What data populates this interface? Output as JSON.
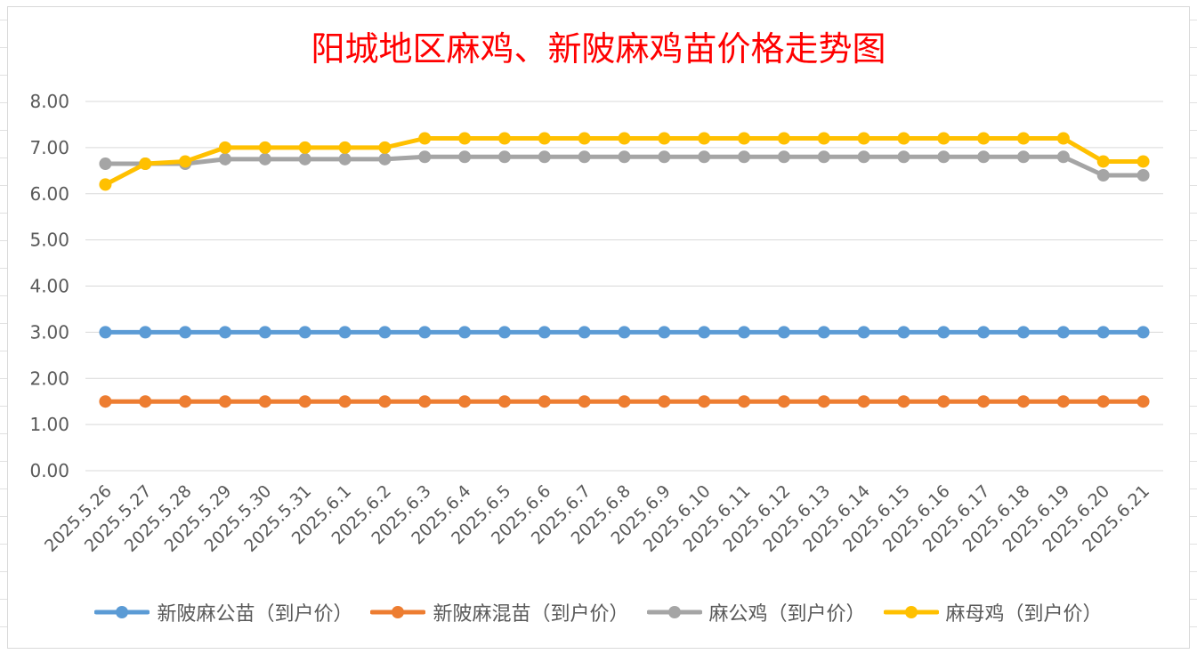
{
  "chart_data": {
    "type": "line",
    "title": "阳城地区麻鸡、新陂麻鸡苗价格走势图",
    "xlabel": "",
    "ylabel": "",
    "ylim": [
      0,
      8
    ],
    "y_ticks": [
      "0.00",
      "1.00",
      "2.00",
      "3.00",
      "4.00",
      "5.00",
      "6.00",
      "7.00",
      "8.00"
    ],
    "grid": true,
    "legend_position": "bottom",
    "categories": [
      "2025.5.26",
      "2025.5.27",
      "2025.5.28",
      "2025.5.29",
      "2025.5.30",
      "2025.5.31",
      "2025.6.1",
      "2025.6.2",
      "2025.6.3",
      "2025.6.4",
      "2025.6.5",
      "2025.6.6",
      "2025.6.7",
      "2025.6.8",
      "2025.6.9",
      "2025.6.10",
      "2025.6.11",
      "2025.6.12",
      "2025.6.13",
      "2025.6.14",
      "2025.6.15",
      "2025.6.16",
      "2025.6.17",
      "2025.6.18",
      "2025.6.19",
      "2025.6.20",
      "2025.6.21"
    ],
    "series": [
      {
        "name": "新陂麻公苗（到户价）",
        "color": "#5b9bd5",
        "values": [
          3.0,
          3.0,
          3.0,
          3.0,
          3.0,
          3.0,
          3.0,
          3.0,
          3.0,
          3.0,
          3.0,
          3.0,
          3.0,
          3.0,
          3.0,
          3.0,
          3.0,
          3.0,
          3.0,
          3.0,
          3.0,
          3.0,
          3.0,
          3.0,
          3.0,
          3.0,
          3.0
        ]
      },
      {
        "name": "新陂麻混苗（到户价）",
        "color": "#ed7d31",
        "values": [
          1.5,
          1.5,
          1.5,
          1.5,
          1.5,
          1.5,
          1.5,
          1.5,
          1.5,
          1.5,
          1.5,
          1.5,
          1.5,
          1.5,
          1.5,
          1.5,
          1.5,
          1.5,
          1.5,
          1.5,
          1.5,
          1.5,
          1.5,
          1.5,
          1.5,
          1.5,
          1.5
        ]
      },
      {
        "name": "麻公鸡（到户价）",
        "color": "#a5a5a5",
        "values": [
          6.65,
          6.65,
          6.65,
          6.75,
          6.75,
          6.75,
          6.75,
          6.75,
          6.8,
          6.8,
          6.8,
          6.8,
          6.8,
          6.8,
          6.8,
          6.8,
          6.8,
          6.8,
          6.8,
          6.8,
          6.8,
          6.8,
          6.8,
          6.8,
          6.8,
          6.4,
          6.4
        ]
      },
      {
        "name": "麻母鸡（到户价）",
        "color": "#ffc000",
        "values": [
          6.2,
          6.65,
          6.7,
          7.0,
          7.0,
          7.0,
          7.0,
          7.0,
          7.2,
          7.2,
          7.2,
          7.2,
          7.2,
          7.2,
          7.2,
          7.2,
          7.2,
          7.2,
          7.2,
          7.2,
          7.2,
          7.2,
          7.2,
          7.2,
          7.2,
          6.7,
          6.7
        ]
      }
    ]
  }
}
